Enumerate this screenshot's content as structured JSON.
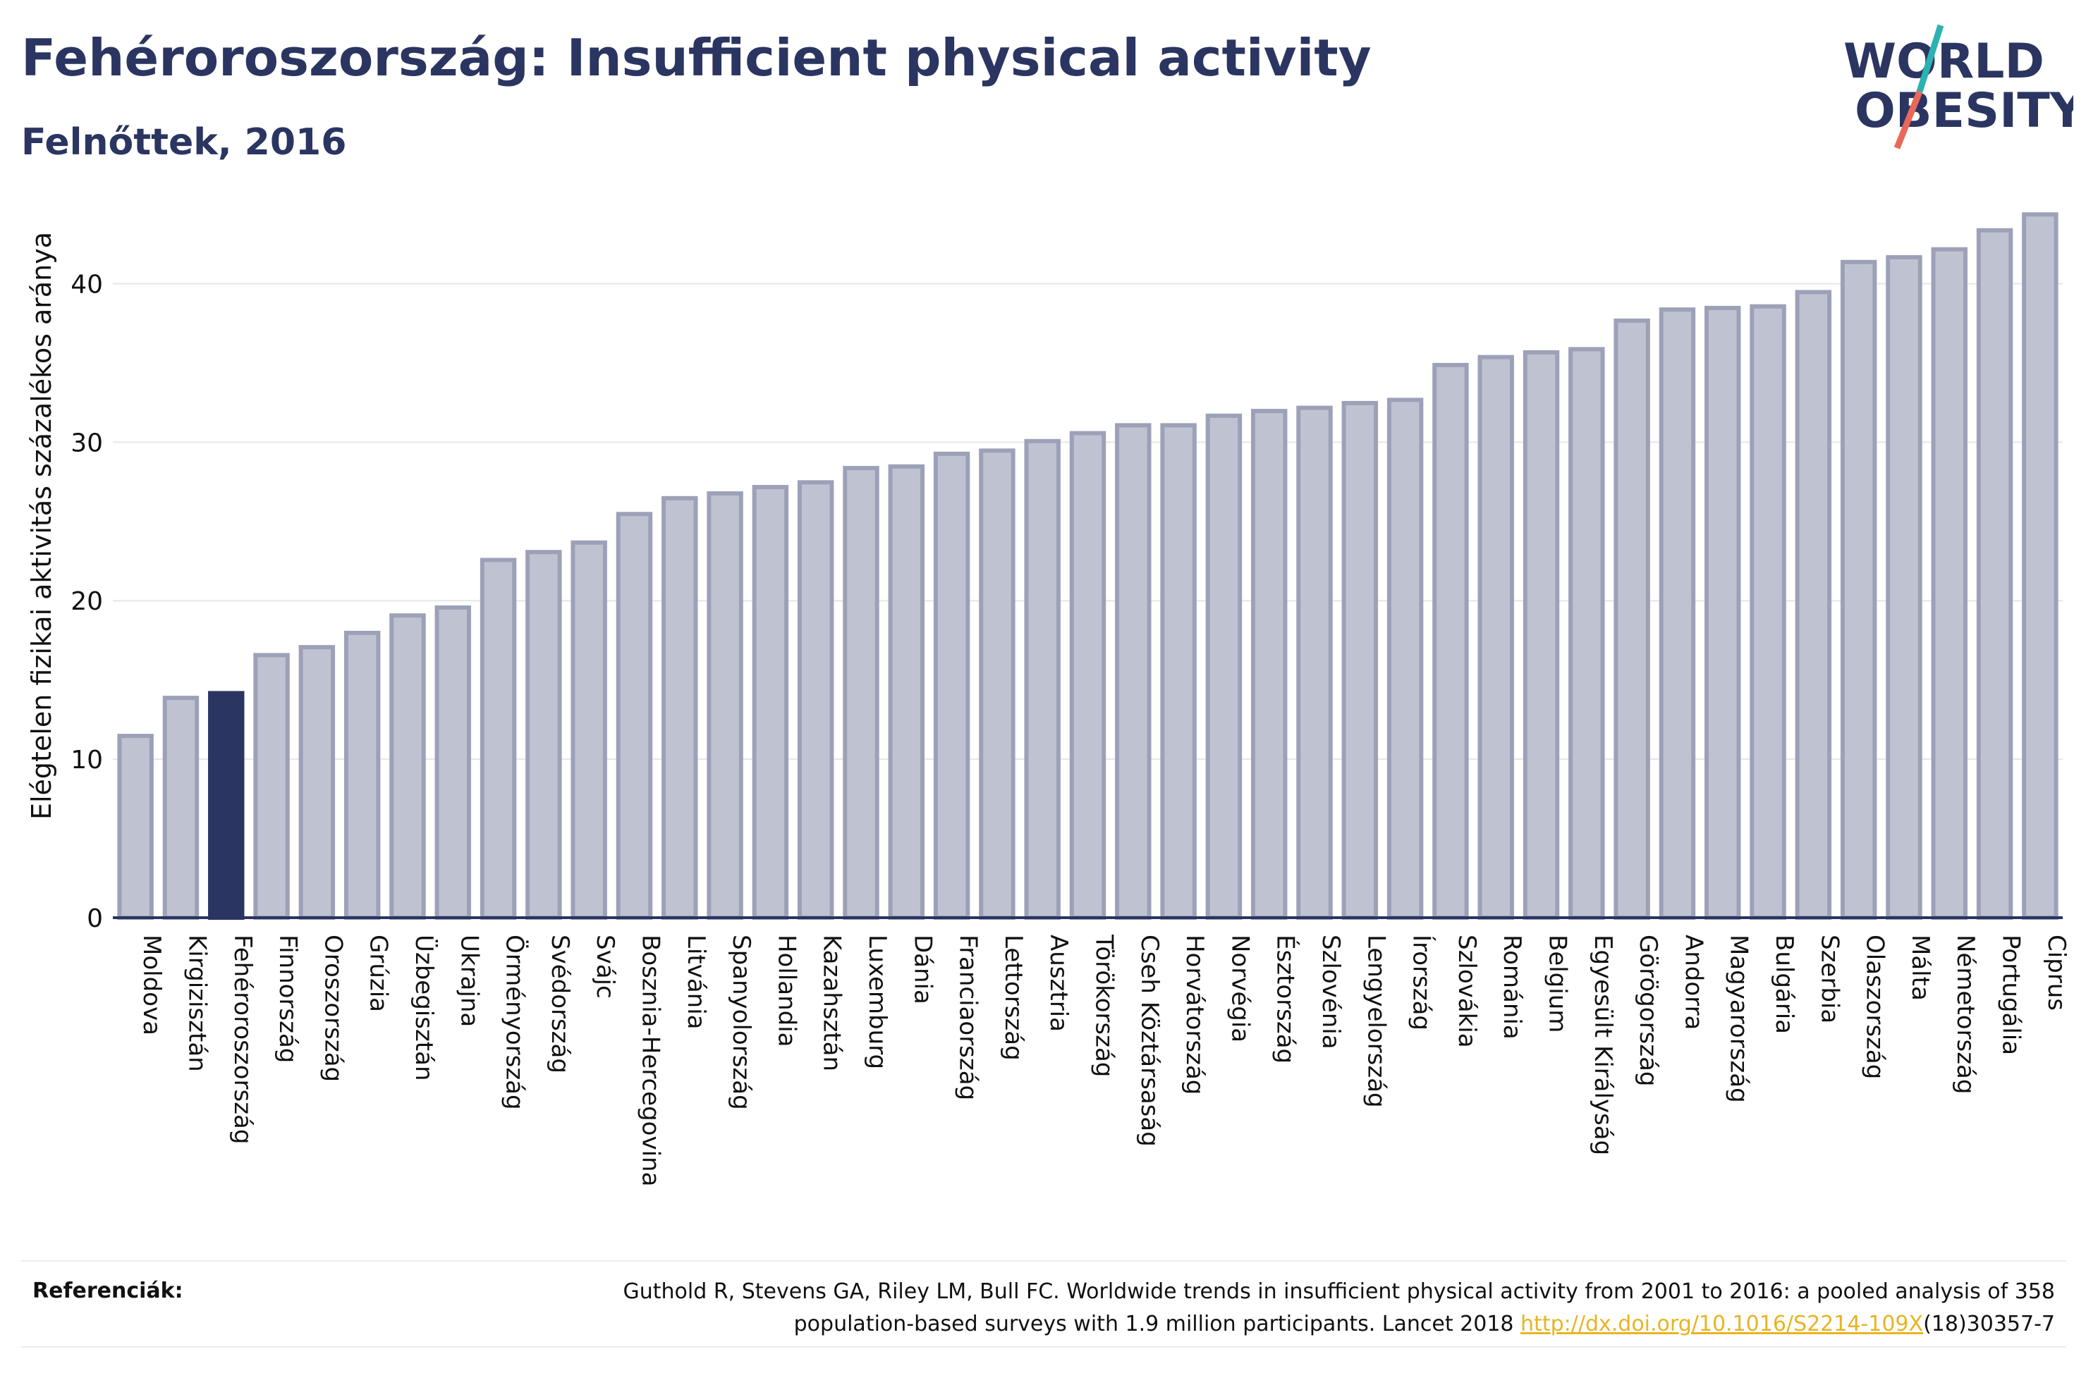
{
  "header": {
    "title": "Fehéroroszország: Insufficient physical activity",
    "subtitle": "Felnőttek, 2016"
  },
  "logo": {
    "line1": "WORLD",
    "line2": "OBESITY",
    "accent_colors": [
      "#2bb3b1",
      "#e8685a"
    ]
  },
  "chart_data": {
    "type": "bar",
    "ylabel": "Elégtelen fizikai aktivitás százalékos aránya",
    "xlabel": "",
    "ylim": [
      0,
      45
    ],
    "yticks": [
      0,
      10,
      20,
      30,
      40
    ],
    "grid": true,
    "highlight_category": "Fehéroroszország",
    "colors": {
      "bar": "#bfc3d1",
      "bar_border": "#9ca1b8",
      "highlight": "#2b3561",
      "grid": "#e6e6ea",
      "axis": "#2b3561"
    },
    "categories": [
      "Moldova",
      "Kirgizisztán",
      "Fehéroroszország",
      "Finnország",
      "Oroszország",
      "Grúzia",
      "Üzbegisztán",
      "Ukrajna",
      "Örményország",
      "Svédország",
      "Svájc",
      "Bosznia-Hercegovina",
      "Litvánia",
      "Spanyolország",
      "Hollandia",
      "Kazahsztán",
      "Luxemburg",
      "Dánia",
      "Franciaország",
      "Lettország",
      "Ausztria",
      "Törökország",
      "Cseh Köztársaság",
      "Horvátország",
      "Norvégia",
      "Észtország",
      "Szlovénia",
      "Lengyelország",
      "Írország",
      "Szlovákia",
      "Románia",
      "Belgium",
      "Egyesült Királyság",
      "Görögország",
      "Andorra",
      "Magyarország",
      "Bulgária",
      "Szerbia",
      "Olaszország",
      "Málta",
      "Németország",
      "Portugália",
      "Ciprus"
    ],
    "values": [
      11.6,
      14.0,
      14.3,
      16.7,
      17.2,
      18.1,
      19.2,
      19.7,
      22.7,
      23.2,
      23.8,
      25.6,
      26.6,
      26.9,
      27.3,
      27.6,
      28.5,
      28.6,
      29.4,
      29.6,
      30.2,
      30.7,
      31.2,
      31.2,
      31.8,
      32.1,
      32.3,
      32.6,
      32.8,
      35.0,
      35.5,
      35.8,
      36.0,
      37.8,
      38.5,
      38.6,
      38.7,
      39.6,
      41.5,
      41.8,
      42.3,
      43.5,
      44.5
    ]
  },
  "references": {
    "label": "Referenciák:",
    "line1": "Guthold R, Stevens GA, Riley LM, Bull FC. Worldwide trends in insufficient physical activity from 2001 to 2016: a pooled analysis of 358",
    "line2_prefix": "population-based surveys with 1.9 million participants. Lancet 2018 ",
    "link_text": "http://dx.doi.org/10.1016/S2214-109X",
    "line2_suffix": "(18)30357-7"
  }
}
